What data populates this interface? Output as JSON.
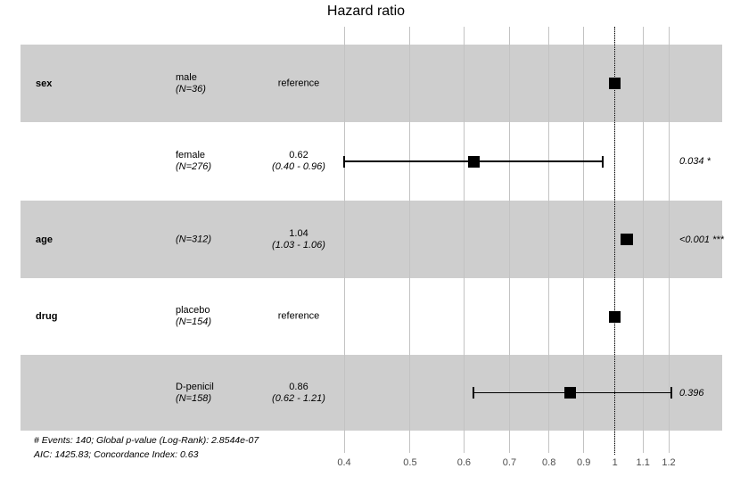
{
  "title": "Hazard ratio",
  "footer": {
    "line1": "# Events: 140; Global p-value (Log-Rank): 2.8544e-07",
    "line2": "AIC: 1425.83; Concordance Index: 0.63"
  },
  "colors": {
    "band": "#cecece",
    "gridline": "#c3c3c3",
    "marker": "#000000",
    "whisker": "#000000",
    "tick_label": "#4d4d4d",
    "reference_line": "#000000"
  },
  "chart_data": {
    "type": "forest",
    "title": "Hazard ratio",
    "x_scale": "log10",
    "x_range": [
      0.4,
      1.2
    ],
    "x_ticks": [
      0.4,
      0.5,
      0.6,
      0.7,
      0.8,
      0.9,
      1,
      1.1,
      1.2
    ],
    "x_tick_labels": [
      "0.4",
      "0.5",
      "0.6",
      "0.7",
      "0.8",
      "0.9",
      "1",
      "1.1",
      "1.2"
    ],
    "reference_value": 1,
    "grid": true,
    "rows": [
      {
        "variable": "sex",
        "level": "male",
        "n_label": "(N=36)",
        "estimate_label": "reference",
        "ci_label": "",
        "hr": 1.0,
        "ci_low": null,
        "ci_high": null,
        "p_label": "",
        "shaded": true
      },
      {
        "variable": "",
        "level": "female",
        "n_label": "(N=276)",
        "estimate_label": "0.62",
        "ci_label": "(0.40 - 0.96)",
        "hr": 0.62,
        "ci_low": 0.4,
        "ci_high": 0.96,
        "p_label": "0.034 *",
        "shaded": false
      },
      {
        "variable": "age",
        "level": "",
        "n_label": "(N=312)",
        "estimate_label": "1.04",
        "ci_label": "(1.03 - 1.06)",
        "hr": 1.04,
        "ci_low": 1.03,
        "ci_high": 1.06,
        "p_label": "<0.001 ***",
        "shaded": true
      },
      {
        "variable": "drug",
        "level": "placebo",
        "n_label": "(N=154)",
        "estimate_label": "reference",
        "ci_label": "",
        "hr": 1.0,
        "ci_low": null,
        "ci_high": null,
        "p_label": "",
        "shaded": false
      },
      {
        "variable": "",
        "level": "D-penicil",
        "n_label": "(N=158)",
        "estimate_label": "0.86",
        "ci_label": "(0.62 - 1.21)",
        "hr": 0.86,
        "ci_low": 0.62,
        "ci_high": 1.21,
        "p_label": "0.396",
        "shaded": true
      }
    ]
  }
}
